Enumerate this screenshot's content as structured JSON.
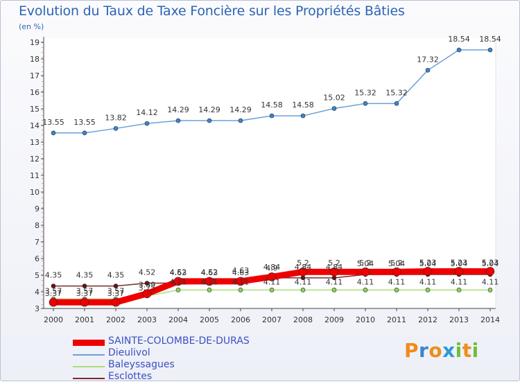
{
  "title": "Evolution du Taux de Taxe Foncière sur les Propriétés Bâties",
  "subtitle": "(en %)",
  "brand": {
    "letters": [
      "P",
      "r",
      "o",
      "x",
      "i",
      "t",
      "i"
    ],
    "colors": [
      "#f08c1a",
      "#3a86d0",
      "#f08c1a",
      "#2a9bd8",
      "#6cbf3b",
      "#f08c1a",
      "#6cbf3b"
    ]
  },
  "chart_data": {
    "type": "line",
    "title": "Evolution du Taux de Taxe Foncière sur les Propriétés Bâties",
    "ylabel": "(en %)",
    "xlabel": "",
    "ylim": [
      3,
      19
    ],
    "yticks": [
      3,
      4,
      5,
      6,
      7,
      8,
      9,
      10,
      11,
      12,
      13,
      14,
      15,
      16,
      17,
      18,
      19
    ],
    "x": [
      "2000",
      "2001",
      "2002",
      "2003",
      "2004",
      "2005",
      "2006",
      "2007",
      "2008",
      "2009",
      "2010",
      "2011",
      "2012",
      "2013",
      "2014"
    ],
    "series": [
      {
        "name": "Dieulivol",
        "color": "#6a9fd8",
        "marker": "#3a86d0",
        "values": [
          13.55,
          13.55,
          13.82,
          14.12,
          14.29,
          14.29,
          14.29,
          14.58,
          14.58,
          15.02,
          15.32,
          15.32,
          17.32,
          18.54,
          18.54
        ],
        "labels": [
          "13.55",
          "13.55",
          "13.82",
          "14.12",
          "14.29",
          "14.29",
          "14.29",
          "14.58",
          "14.58",
          "15.02",
          "15.32",
          "15.32",
          "17.32",
          "18.54",
          "18.54"
        ]
      },
      {
        "name": "Esclottes",
        "color": "#7a2a2a",
        "marker": "#6b1111",
        "values": [
          4.35,
          4.35,
          4.35,
          4.52,
          4.52,
          4.52,
          4.63,
          4.84,
          4.84,
          4.84,
          5.04,
          5.04,
          5.04,
          5.04,
          5.04
        ],
        "labels": [
          "4.35",
          "4.35",
          "4.35",
          "4.52",
          "4.52",
          "4.52",
          "4.63",
          "4.84",
          "4.84",
          "4.84",
          "5.04",
          "5.04",
          "5.04",
          "5.04",
          "5.04"
        ]
      },
      {
        "name": "Baleyssagues",
        "color": "#a8de7a",
        "marker": "#8ed35a",
        "values": [
          3.57,
          3.57,
          3.57,
          3.75,
          4.11,
          4.11,
          4.11,
          4.11,
          4.11,
          4.11,
          4.11,
          4.11,
          4.11,
          4.11,
          4.11
        ],
        "labels": [
          "3.57",
          "3.57",
          "3.57",
          "3.75",
          "4.11",
          "4.11",
          "4.11",
          "4.11",
          "4.11",
          "4.11",
          "4.11",
          "4.11",
          "4.11",
          "4.11",
          "4.11"
        ]
      },
      {
        "name": "SAINTE-COLOMBE-DE-DURAS",
        "color": "#ee0000",
        "marker": "#ee0000",
        "values": [
          3.37,
          3.37,
          3.37,
          3.89,
          4.63,
          4.63,
          4.63,
          4.9,
          5.2,
          5.2,
          5.2,
          5.2,
          5.23,
          5.23,
          5.23
        ],
        "labels": [
          "3.37",
          "3.37",
          "3.37",
          "3.89",
          "4.63",
          "4.63",
          "4.63",
          "4.9",
          "5.2",
          "5.2",
          "5.2",
          "5.2",
          "5.23",
          "5.23",
          "5.23"
        ]
      }
    ],
    "legend": [
      "SAINTE-COLOMBE-DE-DURAS",
      "Dieulivol",
      "Baleyssagues",
      "Esclottes"
    ],
    "legend_colors": [
      "#ee0000",
      "#6a9fd8",
      "#a8de7a",
      "#7a2a2a"
    ],
    "legend_position": "bottom-left",
    "grid": false
  }
}
